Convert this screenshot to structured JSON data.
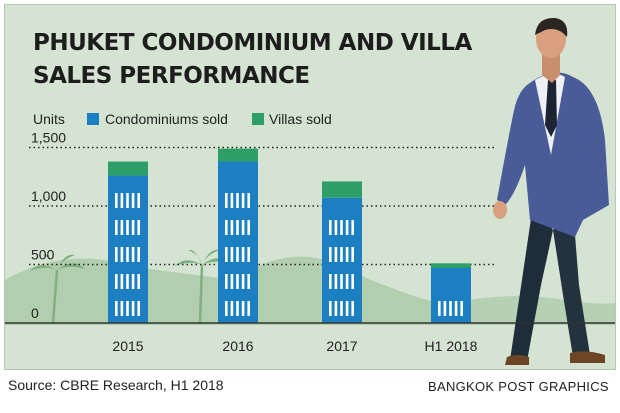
{
  "chart_data": {
    "type": "bar",
    "stacked": true,
    "title": "PHUKET CONDOMINIUM AND VILLA SALES PERFORMANCE",
    "title_lines": [
      "PHUKET CONDOMINIUM AND VILLA",
      "SALES PERFORMANCE"
    ],
    "ylabel": "Units",
    "categories": [
      "2015",
      "2016",
      "2017",
      "H1 2018"
    ],
    "series": [
      {
        "name": "Condominiums sold",
        "color": "#1c7fc1",
        "values": [
          1260,
          1380,
          1070,
          470
        ]
      },
      {
        "name": "Villas sold",
        "color": "#2e9e68",
        "values": [
          120,
          110,
          140,
          40
        ]
      }
    ],
    "yticks": [
      0,
      500,
      1000,
      1500
    ],
    "ytick_labels": [
      "0",
      "500",
      "1,000",
      "1,500"
    ],
    "ylim": [
      0,
      1600
    ],
    "grid": "dotted horizontal",
    "legend": "top-left",
    "source": "Source: CBRE Research, H1 2018",
    "credit": "BANGKOK POST GRAPHICS"
  }
}
